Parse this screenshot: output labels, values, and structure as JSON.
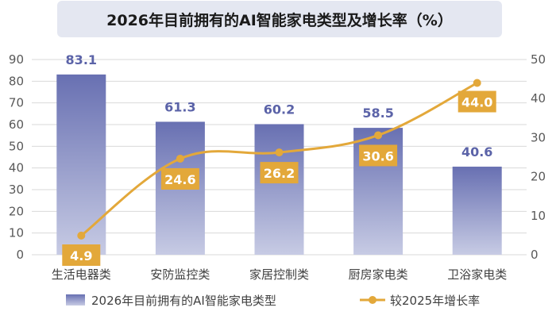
{
  "title": "2026年目前拥有的AI智能家电类型及增长率（%）",
  "colors": {
    "bar_top": "#6870b2",
    "bar_bottom": "#c7cbe4",
    "line": "#e3a83a",
    "label_box": "#e3a83a",
    "bar_label": "#5b63a8",
    "title_bg": "#e4e7f1",
    "grid": "#d9d9d9"
  },
  "chart_data": {
    "type": "bar",
    "title": "2026年目前拥有的AI智能家电类型及增长率（%）",
    "categories": [
      "生活电器类",
      "安防监控类",
      "家居控制类",
      "厨房家电类",
      "卫浴家电类"
    ],
    "series": [
      {
        "name": "2026年目前拥有的AI智能家电类型",
        "type": "bar",
        "axis": "left",
        "values": [
          83.1,
          61.3,
          60.2,
          58.5,
          40.6
        ]
      },
      {
        "name": "较2025年增长率",
        "type": "line",
        "axis": "right",
        "values": [
          4.9,
          24.6,
          26.2,
          30.6,
          44.0
        ]
      }
    ],
    "y_left": {
      "min": 0,
      "max": 90,
      "ticks": [
        "0",
        "10",
        "20",
        "30",
        "40",
        "50",
        "60",
        "70",
        "80",
        "90"
      ]
    },
    "y_right": {
      "min": 0,
      "max": 50,
      "ticks": [
        "0",
        "10",
        "20",
        "30",
        "40",
        "50"
      ]
    },
    "bar_labels": [
      "83.1",
      "61.3",
      "60.2",
      "58.5",
      "40.6"
    ],
    "line_labels": [
      "4.9",
      "24.6",
      "26.2",
      "30.6",
      "44.0"
    ],
    "grid": true,
    "legend_position": "bottom"
  }
}
